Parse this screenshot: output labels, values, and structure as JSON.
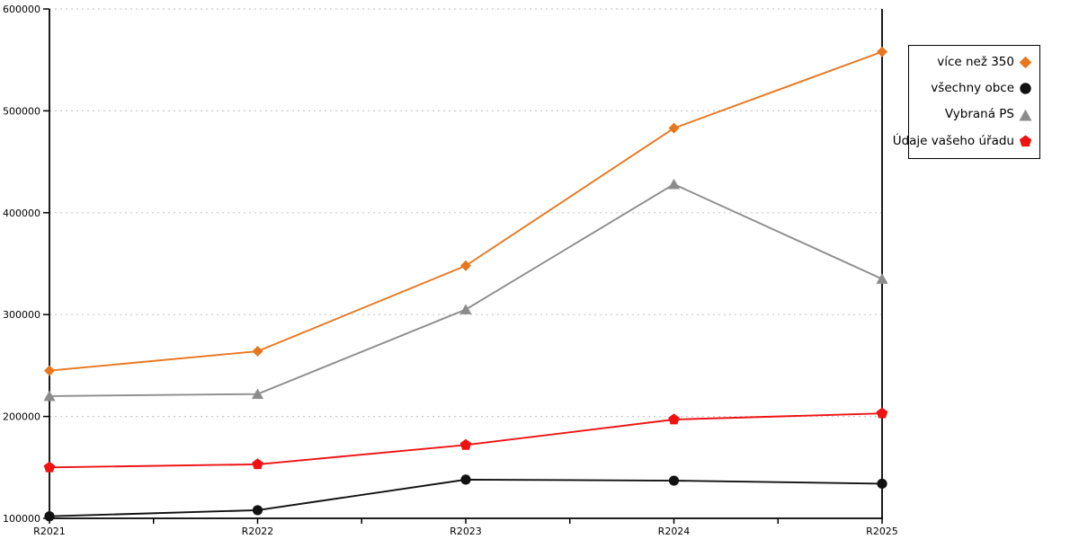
{
  "chart_data": {
    "type": "line",
    "categories": [
      "R2021",
      "R2022",
      "R2023",
      "R2024",
      "R2025"
    ],
    "series": [
      {
        "name": "více než 350",
        "marker": "diamond",
        "color": "#e8761e",
        "values": [
          245000,
          264000,
          348000,
          483000,
          558000
        ]
      },
      {
        "name": "všechny obce",
        "marker": "circle",
        "color": "#111111",
        "values": [
          102000,
          108000,
          138000,
          137000,
          134000
        ]
      },
      {
        "name": "Vybraná PS",
        "marker": "triangle",
        "color": "#8c8c8c",
        "values": [
          220000,
          222000,
          305000,
          428000,
          335000
        ]
      },
      {
        "name": "Údaje vašeho úřadu",
        "marker": "pentagon",
        "color": "#ee1212",
        "values": [
          150000,
          153000,
          172000,
          197000,
          203000
        ]
      }
    ],
    "ylim": [
      100000,
      600000
    ],
    "ytick_labels": [
      "100000",
      "200000",
      "300000",
      "400000",
      "500000",
      "600000"
    ],
    "grid": "horizontal-dotted",
    "gridline_color": "#c8c8c8",
    "axis_color": "#000000",
    "legend_position": "outside-right-top"
  }
}
